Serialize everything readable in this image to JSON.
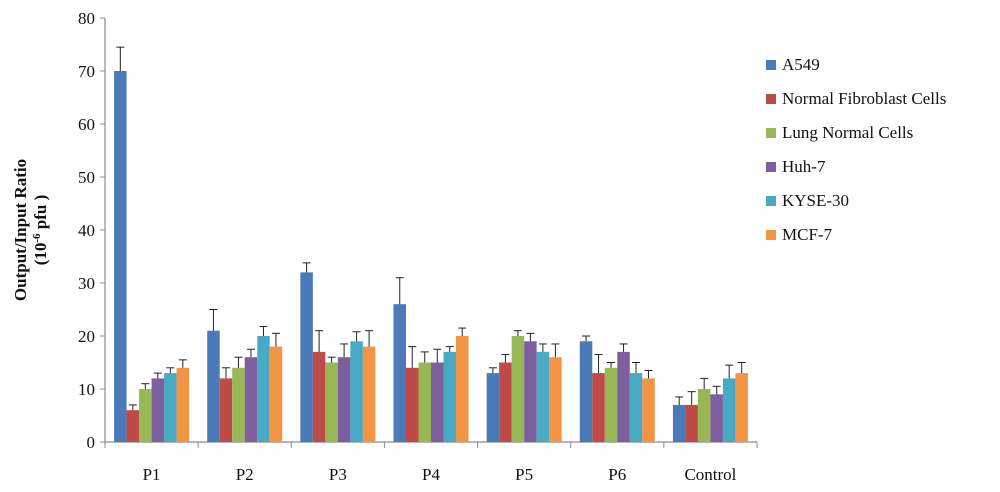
{
  "chart_data": {
    "type": "bar",
    "title": "",
    "xlabel": "",
    "ylabel": "Output/Input Ratio",
    "ylabel_unit": "(10",
    "ylabel_unit_exp": "-6",
    "ylabel_unit_rest": " pfu )",
    "ylim": [
      0,
      80
    ],
    "yticks": [
      "0",
      "10",
      "20",
      "30",
      "40",
      "50",
      "60",
      "70",
      "80"
    ],
    "grid": false,
    "legend_position": "right",
    "categories": [
      "P1",
      "P2",
      "P3",
      "P4",
      "P5",
      "P6",
      "Control"
    ],
    "series": [
      {
        "name": "A549",
        "color": "#4a7ab8",
        "values": [
          70,
          21,
          32,
          26,
          13,
          19,
          7
        ],
        "errors": [
          4.5,
          4,
          1.8,
          5,
          1,
          1,
          1.5
        ]
      },
      {
        "name": "Normal Fibroblast  Cells",
        "color": "#bf4b48",
        "values": [
          6,
          12,
          17,
          14,
          15,
          13,
          7
        ],
        "errors": [
          1,
          2,
          4,
          4,
          1.5,
          3.5,
          2.5
        ]
      },
      {
        "name": "Lung Normal Cells",
        "color": "#97b855",
        "values": [
          10,
          14,
          15,
          15,
          20,
          14,
          10
        ],
        "errors": [
          1,
          2,
          1,
          2,
          1,
          1,
          2
        ]
      },
      {
        "name": "Huh-7",
        "color": "#7d5fa0",
        "values": [
          12,
          16,
          16,
          15,
          19,
          17,
          9
        ],
        "errors": [
          1,
          1.5,
          2.5,
          2.5,
          1.5,
          1.5,
          1.5
        ]
      },
      {
        "name": "KYSE-30",
        "color": "#47a9c3",
        "values": [
          13,
          20,
          19,
          17,
          17,
          13,
          12
        ],
        "errors": [
          1,
          1.8,
          1.8,
          1,
          1.5,
          2,
          2.5
        ]
      },
      {
        "name": "MCF-7",
        "color": "#f19444",
        "values": [
          14,
          18,
          18,
          20,
          16,
          12,
          13
        ],
        "errors": [
          1.5,
          2.5,
          3,
          1.5,
          2.5,
          1.5,
          2
        ]
      }
    ]
  }
}
